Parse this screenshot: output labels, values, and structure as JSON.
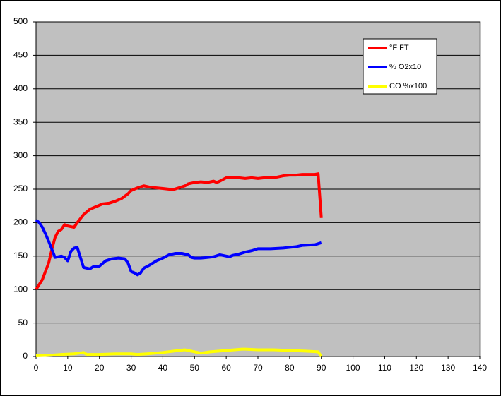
{
  "chart_data": {
    "type": "line",
    "xlim": [
      0,
      140
    ],
    "xticks": [
      0,
      10,
      20,
      30,
      40,
      50,
      60,
      70,
      80,
      90,
      100,
      110,
      120,
      130,
      140
    ],
    "ylim": [
      0,
      500
    ],
    "yticks": [
      0,
      50,
      100,
      150,
      200,
      250,
      300,
      350,
      400,
      450,
      500
    ],
    "grid": true,
    "legend": "upper-right",
    "series": [
      {
        "name": "°F FT",
        "color": "#ff0000",
        "x": [
          0,
          2,
          4,
          5,
          6,
          7,
          8,
          9,
          10,
          12,
          13,
          15,
          17,
          19,
          21,
          23,
          25,
          27,
          29,
          30,
          32,
          34,
          36,
          38,
          40,
          42,
          43,
          45,
          47,
          48,
          50,
          52,
          54,
          56,
          57,
          58,
          60,
          62,
          64,
          66,
          68,
          70,
          72,
          74,
          76,
          78,
          80,
          82,
          84,
          86,
          88,
          89,
          90
        ],
        "values": [
          100,
          115,
          140,
          160,
          178,
          187,
          190,
          197,
          195,
          193,
          200,
          212,
          220,
          224,
          228,
          229,
          232,
          236,
          243,
          248,
          252,
          255,
          253,
          252,
          251,
          250,
          249,
          252,
          255,
          258,
          260,
          261,
          260,
          262,
          260,
          262,
          267,
          268,
          267,
          266,
          267,
          266,
          267,
          267,
          268,
          270,
          271,
          271,
          272,
          272,
          272,
          273,
          207
        ]
      },
      {
        "name": "% O2x10",
        "color": "#0000ff",
        "x": [
          0,
          1,
          2,
          3,
          4,
          5,
          6,
          7,
          8,
          9,
          10,
          11,
          12,
          13,
          14,
          15,
          16,
          17,
          18,
          20,
          22,
          24,
          26,
          28,
          29,
          30,
          31,
          32,
          33,
          34,
          36,
          38,
          40,
          42,
          44,
          46,
          48,
          49,
          50,
          52,
          54,
          56,
          58,
          60,
          61,
          62,
          64,
          66,
          68,
          70,
          74,
          78,
          82,
          84,
          88,
          90
        ],
        "values": [
          204,
          200,
          193,
          183,
          172,
          160,
          148,
          149,
          150,
          148,
          143,
          157,
          162,
          163,
          148,
          133,
          132,
          131,
          134,
          135,
          143,
          146,
          147,
          146,
          140,
          127,
          125,
          122,
          125,
          132,
          137,
          143,
          147,
          152,
          154,
          154,
          152,
          148,
          147,
          147,
          148,
          149,
          152,
          150,
          149,
          151,
          153,
          156,
          158,
          161,
          161,
          162,
          164,
          166,
          167,
          170
        ]
      },
      {
        "name": "CO %x100",
        "color": "#ffff00",
        "x": [
          0,
          5,
          8,
          12,
          15,
          16,
          20,
          25,
          30,
          32,
          35,
          40,
          45,
          47,
          49,
          52,
          55,
          60,
          65,
          66,
          70,
          75,
          80,
          85,
          89,
          90
        ],
        "values": [
          1,
          2,
          3,
          4,
          6,
          3,
          3,
          4,
          4,
          3,
          4,
          6,
          9,
          10,
          8,
          5,
          7,
          9,
          11,
          11,
          10,
          10,
          9,
          8,
          7,
          0
        ]
      }
    ]
  }
}
